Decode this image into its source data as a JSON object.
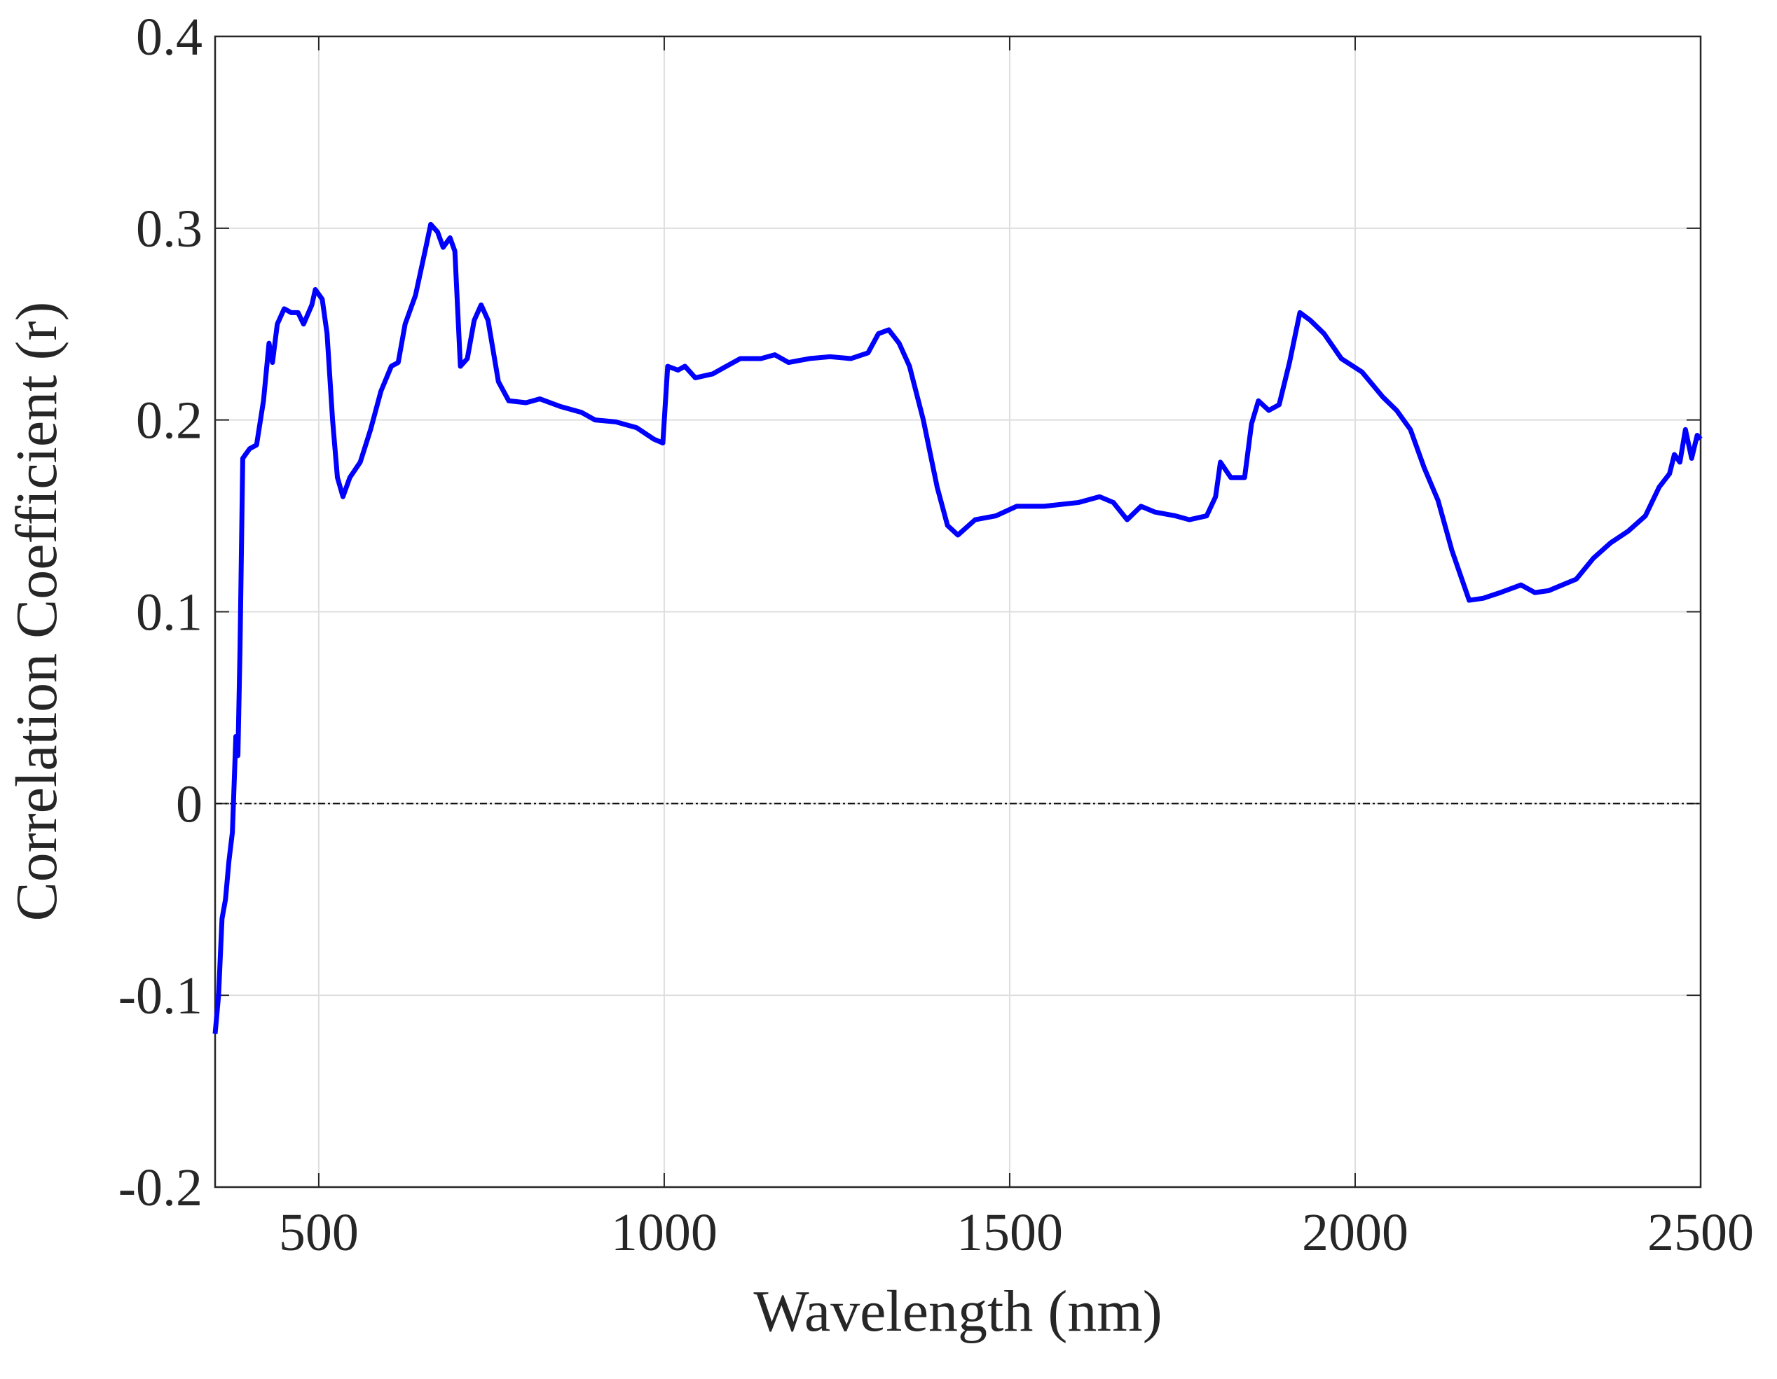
{
  "chart_data": {
    "type": "line",
    "xlabel": "Wavelength (nm)",
    "ylabel": "Correlation Coefficient (r)",
    "xlim": [
      350,
      2500
    ],
    "ylim": [
      -0.2,
      0.4
    ],
    "xticks": [
      500,
      1000,
      1500,
      2000,
      2500
    ],
    "yticks": [
      -0.2,
      -0.1,
      0,
      0.1,
      0.2,
      0.3,
      0.4
    ],
    "grid": true,
    "hlines": [
      0
    ],
    "x": [
      350,
      355,
      360,
      365,
      370,
      375,
      380,
      383,
      386,
      390,
      400,
      410,
      420,
      428,
      433,
      440,
      450,
      460,
      470,
      478,
      490,
      495,
      505,
      512,
      520,
      527,
      535,
      545,
      560,
      575,
      590,
      605,
      615,
      625,
      640,
      655,
      662,
      672,
      680,
      690,
      697,
      705,
      715,
      725,
      735,
      745,
      760,
      775,
      800,
      820,
      850,
      880,
      900,
      930,
      960,
      985,
      998,
      1005,
      1020,
      1030,
      1045,
      1070,
      1090,
      1110,
      1140,
      1160,
      1180,
      1210,
      1240,
      1270,
      1295,
      1310,
      1325,
      1340,
      1355,
      1375,
      1395,
      1410,
      1425,
      1450,
      1480,
      1510,
      1550,
      1600,
      1630,
      1650,
      1670,
      1690,
      1710,
      1740,
      1760,
      1785,
      1798,
      1805,
      1820,
      1840,
      1850,
      1860,
      1875,
      1890,
      1905,
      1920,
      1935,
      1955,
      1980,
      2010,
      2040,
      2060,
      2080,
      2100,
      2120,
      2140,
      2165,
      2185,
      2210,
      2240,
      2260,
      2280,
      2300,
      2320,
      2345,
      2370,
      2395,
      2420,
      2440,
      2455,
      2462,
      2470,
      2478,
      2487,
      2495,
      2500
    ],
    "series": [
      {
        "color": "#0000ff",
        "values": [
          -0.12,
          -0.1,
          -0.06,
          -0.05,
          -0.03,
          -0.015,
          0.035,
          0.025,
          0.08,
          0.18,
          0.185,
          0.187,
          0.21,
          0.24,
          0.23,
          0.25,
          0.258,
          0.256,
          0.256,
          0.25,
          0.26,
          0.268,
          0.263,
          0.245,
          0.2,
          0.17,
          0.16,
          0.17,
          0.178,
          0.195,
          0.215,
          0.228,
          0.23,
          0.25,
          0.265,
          0.29,
          0.302,
          0.298,
          0.29,
          0.295,
          0.288,
          0.228,
          0.232,
          0.252,
          0.26,
          0.252,
          0.22,
          0.21,
          0.209,
          0.211,
          0.207,
          0.204,
          0.2,
          0.199,
          0.196,
          0.19,
          0.188,
          0.228,
          0.226,
          0.228,
          0.222,
          0.224,
          0.228,
          0.232,
          0.232,
          0.234,
          0.23,
          0.232,
          0.233,
          0.232,
          0.235,
          0.245,
          0.247,
          0.24,
          0.228,
          0.2,
          0.165,
          0.145,
          0.14,
          0.148,
          0.15,
          0.155,
          0.155,
          0.157,
          0.16,
          0.157,
          0.148,
          0.155,
          0.152,
          0.15,
          0.148,
          0.15,
          0.16,
          0.178,
          0.17,
          0.17,
          0.198,
          0.21,
          0.205,
          0.208,
          0.23,
          0.256,
          0.252,
          0.245,
          0.232,
          0.225,
          0.212,
          0.205,
          0.195,
          0.175,
          0.158,
          0.132,
          0.106,
          0.107,
          0.11,
          0.114,
          0.11,
          0.111,
          0.114,
          0.117,
          0.128,
          0.136,
          0.142,
          0.15,
          0.165,
          0.172,
          0.182,
          0.178,
          0.195,
          0.18,
          0.192,
          0.19
        ]
      }
    ]
  }
}
